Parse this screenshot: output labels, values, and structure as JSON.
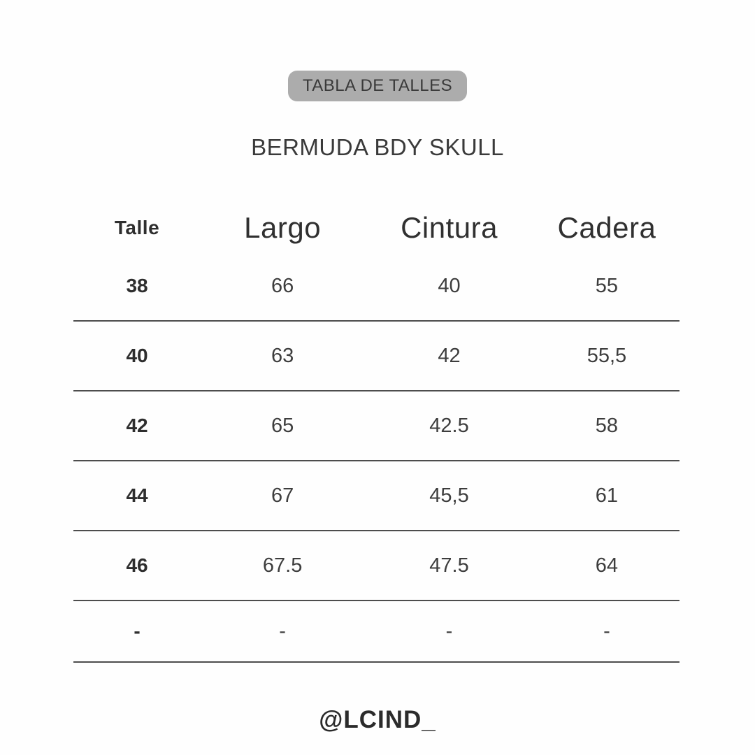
{
  "badge": {
    "label": "TABLA DE TALLES"
  },
  "title": "BERMUDA BDY SKULL",
  "footer": {
    "handle": "@LCIND_"
  },
  "colors": {
    "background": "#fefefe",
    "text": "#3d3d3d",
    "badge_bg": "#acacac",
    "rule_line": "#4d4d4d"
  },
  "chart_data": {
    "type": "table",
    "title": "BERMUDA BDY SKULL",
    "columns": [
      "Talle",
      "Largo",
      "Cintura",
      "Cadera"
    ],
    "rows": [
      [
        "38",
        "66",
        "40",
        "55"
      ],
      [
        "40",
        "63",
        "42",
        "55,5"
      ],
      [
        "42",
        "65",
        "42.5",
        "58"
      ],
      [
        "44",
        "67",
        "45,5",
        "61"
      ],
      [
        "46",
        "67.5",
        "47.5",
        "64"
      ],
      [
        "-",
        "-",
        "-",
        "-"
      ]
    ]
  }
}
